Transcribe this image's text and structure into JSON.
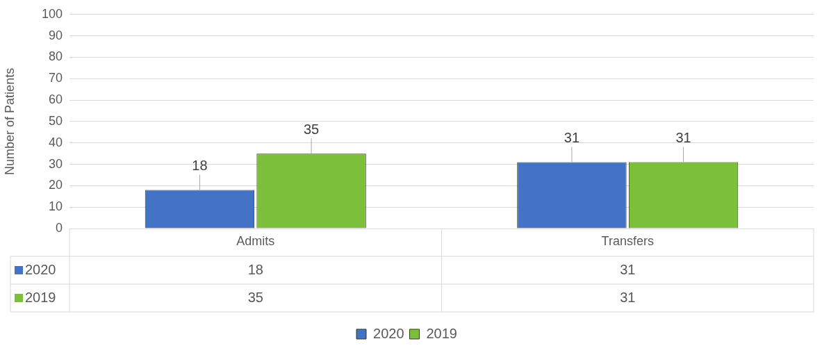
{
  "chart_data": {
    "type": "bar",
    "ylabel": "Number of Patients",
    "categories": [
      "Admits",
      "Transfers"
    ],
    "series": [
      {
        "name": "2020",
        "color": "#4472c4",
        "values": [
          18,
          31
        ],
        "value_labels": [
          "18",
          "31"
        ]
      },
      {
        "name": "2019",
        "color": "#7cbf3a",
        "values": [
          35,
          31
        ],
        "value_labels": [
          "35",
          "31"
        ]
      }
    ],
    "ylim": [
      0,
      100
    ],
    "yticks": [
      0,
      10,
      20,
      30,
      40,
      50,
      60,
      70,
      80,
      90,
      100
    ],
    "grid": "y",
    "legend": "bottom",
    "annotations": [
      "18",
      "31",
      "35",
      "31"
    ]
  }
}
